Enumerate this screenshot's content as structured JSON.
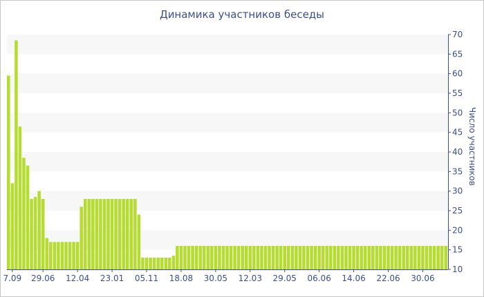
{
  "chart_data": {
    "type": "bar",
    "title": "Динамика участников беседы",
    "ylabel": "Число участников",
    "xlabel": "",
    "ylim": [
      10,
      70
    ],
    "yticks": [
      10,
      15,
      20,
      25,
      30,
      35,
      40,
      45,
      50,
      55,
      60,
      65,
      70
    ],
    "y_axis_side": "right",
    "grid": "alternating horizontal bands",
    "bar_color": "#b5dc30",
    "band_color": "#f7f7f7",
    "text_color": "#3c4f8c",
    "x_tick_labels": [
      {
        "label": "7.09",
        "index": 1
      },
      {
        "label": "29.06",
        "index": 9
      },
      {
        "label": "12.04",
        "index": 18
      },
      {
        "label": "23.01",
        "index": 27
      },
      {
        "label": "05.11",
        "index": 36
      },
      {
        "label": "18.08",
        "index": 45
      },
      {
        "label": "30.05",
        "index": 54
      },
      {
        "label": "12.03",
        "index": 63
      },
      {
        "label": "29.05",
        "index": 72
      },
      {
        "label": "06.06",
        "index": 81
      },
      {
        "label": "14.06",
        "index": 90
      },
      {
        "label": "22.06",
        "index": 99
      },
      {
        "label": "30.06",
        "index": 108
      }
    ],
    "values": [
      59.5,
      32,
      68.5,
      46.5,
      38.5,
      36.5,
      28,
      28.5,
      30,
      28,
      18,
      17,
      17,
      17,
      17,
      17,
      17,
      17,
      17,
      26,
      28,
      28,
      28,
      28,
      28,
      28,
      28,
      28,
      28,
      28,
      28,
      28,
      28,
      28,
      24,
      13,
      13,
      13,
      13,
      13,
      13,
      13,
      13,
      13.5,
      16,
      16,
      16,
      16,
      16,
      16,
      16,
      16,
      16,
      16,
      16,
      16,
      16,
      16,
      16,
      16,
      16,
      16,
      16,
      16,
      16,
      16,
      16,
      16,
      16,
      16,
      16,
      16,
      16,
      16,
      16,
      16,
      16,
      16,
      16,
      16,
      16,
      16,
      16,
      16,
      16,
      16,
      16,
      16,
      16,
      16,
      16,
      16,
      16,
      16,
      16,
      16,
      16,
      16,
      16,
      16,
      16,
      16,
      16,
      16,
      16,
      16,
      16,
      16,
      16,
      16,
      16,
      16,
      16,
      16,
      16
    ]
  }
}
